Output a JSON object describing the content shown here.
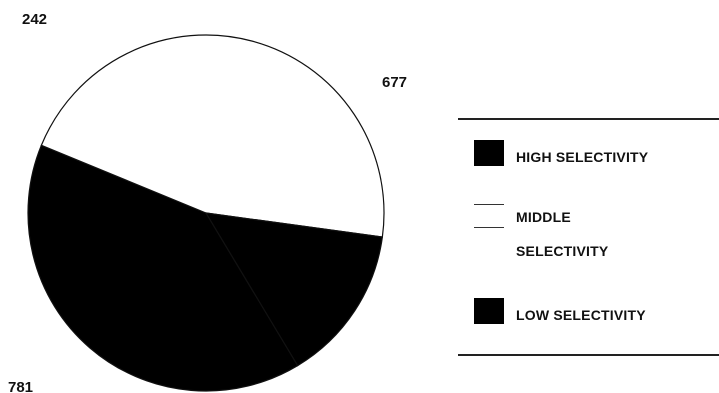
{
  "chart_data": {
    "type": "pie",
    "title": "",
    "slices": [
      {
        "label": "HIGH SELECTIVITY",
        "value": 677,
        "color": "#000000"
      },
      {
        "label": "MIDDLE SELECTIVITY",
        "value": 781,
        "color": "#ffffff"
      },
      {
        "label": "LOW SELECTIVITY",
        "value": 242,
        "color": "#000000"
      }
    ],
    "legend_position": "right"
  }
}
